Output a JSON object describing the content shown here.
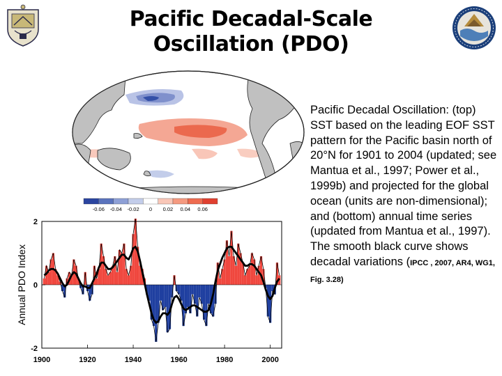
{
  "slide": {
    "title_line1": "Pacific Decadal-Scale",
    "title_line2": "Oscillation (PDO)",
    "description": "Pacific Decadal Oscillation: (top) SST based on the leading EOF SST pattern for the Pacific basin north of 20°N for 1901 to 2004 (updated; see Mantua et al., 1997; Power et al., 1999b) and projected for the global ocean (units are non-dimensional); and (bottom) annual time series (updated from Mantua et al., 1997). The smooth black curve shows decadal variations (",
    "citation": "IPCC , 2007, AR4, WG1, Fig. 3.28)"
  },
  "map": {
    "colorbar_ticks": [
      "-0.06",
      "-0.04",
      "-0.02",
      "0",
      "0.02",
      "0.04",
      "0.06"
    ],
    "colorbar_colors": [
      "#2b45a0",
      "#5a73bd",
      "#8ea0d6",
      "#c3cdea",
      "#ffffff",
      "#f9c7b8",
      "#f59a80",
      "#ee6c50",
      "#e04030"
    ],
    "land_color": "#c0c0c0",
    "positive_color": "#f08a70",
    "negative_color": "#3350a8"
  },
  "chart_data": {
    "type": "bar",
    "ylabel": "Annual PDO Index",
    "xlim": [
      1900,
      2005
    ],
    "ylim": [
      -2,
      2
    ],
    "xticks": [
      1900,
      1920,
      1940,
      1960,
      1980,
      2000
    ],
    "yticks": [
      -2,
      0,
      2
    ],
    "positive_color": "#f0473e",
    "negative_color": "#1f3fa0",
    "x": [
      1901,
      1902,
      1903,
      1904,
      1905,
      1906,
      1907,
      1908,
      1909,
      1910,
      1911,
      1912,
      1913,
      1914,
      1915,
      1916,
      1917,
      1918,
      1919,
      1920,
      1921,
      1922,
      1923,
      1924,
      1925,
      1926,
      1927,
      1928,
      1929,
      1930,
      1931,
      1932,
      1933,
      1934,
      1935,
      1936,
      1937,
      1938,
      1939,
      1940,
      1941,
      1942,
      1943,
      1944,
      1945,
      1946,
      1947,
      1948,
      1949,
      1950,
      1951,
      1952,
      1953,
      1954,
      1955,
      1956,
      1957,
      1958,
      1959,
      1960,
      1961,
      1962,
      1963,
      1964,
      1965,
      1966,
      1967,
      1968,
      1969,
      1970,
      1971,
      1972,
      1973,
      1974,
      1975,
      1976,
      1977,
      1978,
      1979,
      1980,
      1981,
      1982,
      1983,
      1984,
      1985,
      1986,
      1987,
      1988,
      1989,
      1990,
      1991,
      1992,
      1993,
      1994,
      1995,
      1996,
      1997,
      1998,
      1999,
      2000,
      2001,
      2002,
      2003,
      2004
    ],
    "values": [
      0.2,
      0.6,
      0.4,
      0.8,
      1.0,
      0.5,
      0.3,
      0.1,
      -0.2,
      -0.4,
      0.2,
      0.4,
      0.3,
      0.8,
      0.6,
      0.2,
      -0.1,
      -0.3,
      0.4,
      -0.2,
      -0.5,
      -0.3,
      0.6,
      0.2,
      0.5,
      1.3,
      0.9,
      0.5,
      0.3,
      0.4,
      0.6,
      0.9,
      0.4,
      1.1,
      1.0,
      1.3,
      0.5,
      0.3,
      0.6,
      1.6,
      2.1,
      1.2,
      0.6,
      0.5,
      0.2,
      -0.3,
      -0.5,
      -1.1,
      -1.3,
      -1.8,
      -1.2,
      -0.5,
      -0.8,
      -0.7,
      -1.5,
      -1.4,
      -0.4,
      0.3,
      -0.2,
      -0.3,
      -0.5,
      -1.3,
      -0.9,
      -0.7,
      -0.9,
      -0.3,
      -0.6,
      -1.0,
      -0.4,
      -0.6,
      -1.1,
      -1.3,
      -0.6,
      -0.9,
      -1.0,
      -0.6,
      0.7,
      0.2,
      0.5,
      0.8,
      1.4,
      0.9,
      1.7,
      0.9,
      0.6,
      1.3,
      1.0,
      0.7,
      0.3,
      0.5,
      0.6,
      1.0,
      0.8,
      0.3,
      0.6,
      0.9,
      0.5,
      -0.1,
      -1.0,
      -1.2,
      -0.2,
      -0.3,
      0.7,
      0.3
    ],
    "smooth": [
      0.3,
      0.35,
      0.45,
      0.5,
      0.5,
      0.45,
      0.35,
      0.2,
      0.05,
      -0.05,
      0.0,
      0.15,
      0.3,
      0.4,
      0.35,
      0.2,
      0.05,
      -0.05,
      -0.05,
      -0.1,
      -0.1,
      0.05,
      0.2,
      0.35,
      0.55,
      0.7,
      0.7,
      0.6,
      0.5,
      0.5,
      0.55,
      0.65,
      0.75,
      0.85,
      0.95,
      0.95,
      0.85,
      0.8,
      0.95,
      1.15,
      1.2,
      1.05,
      0.75,
      0.4,
      0.05,
      -0.3,
      -0.6,
      -0.9,
      -1.1,
      -1.2,
      -1.15,
      -1.0,
      -0.9,
      -0.9,
      -0.95,
      -0.85,
      -0.6,
      -0.4,
      -0.35,
      -0.45,
      -0.6,
      -0.75,
      -0.8,
      -0.75,
      -0.7,
      -0.65,
      -0.65,
      -0.7,
      -0.75,
      -0.8,
      -0.85,
      -0.85,
      -0.8,
      -0.6,
      -0.3,
      0.1,
      0.45,
      0.65,
      0.85,
      1.0,
      1.15,
      1.2,
      1.2,
      1.1,
      1.0,
      0.9,
      0.8,
      0.7,
      0.6,
      0.6,
      0.65,
      0.65,
      0.6,
      0.5,
      0.4,
      0.3,
      0.1,
      -0.15,
      -0.35,
      -0.45,
      -0.35,
      -0.1,
      0.1,
      0.2
    ]
  }
}
